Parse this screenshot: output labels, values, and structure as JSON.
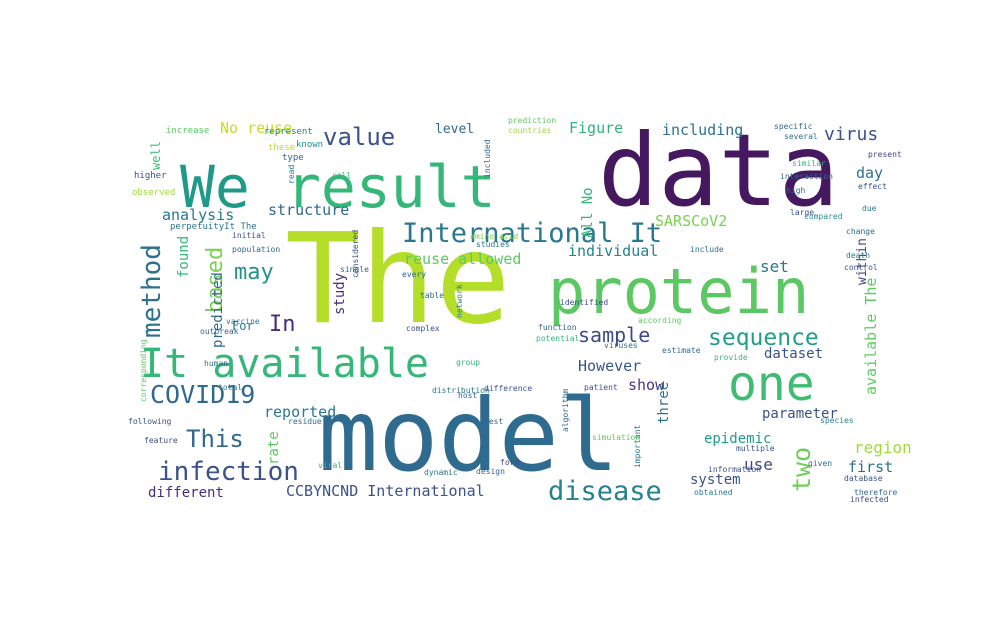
{
  "words": [
    {
      "text": "The",
      "color": "#b5de2b"
    },
    {
      "text": "data",
      "color": "#46185f"
    },
    {
      "text": "model",
      "color": "#2f6b8e"
    },
    {
      "text": "protein",
      "color": "#5cc863"
    },
    {
      "text": "result",
      "color": "#35b779"
    },
    {
      "text": "We",
      "color": "#1f9a8a"
    },
    {
      "text": "one",
      "color": "#3fbc73"
    },
    {
      "text": "It available",
      "color": "#35b779"
    },
    {
      "text": "International It",
      "color": "#2a788e"
    },
    {
      "text": "method",
      "color": "#2c728e"
    },
    {
      "text": "disease",
      "color": "#26828e"
    },
    {
      "text": "infection",
      "color": "#3b528b"
    },
    {
      "text": "COVID19",
      "color": "#31688e"
    },
    {
      "text": "sequence",
      "color": "#1f9e89"
    },
    {
      "text": "value",
      "color": "#3b528b"
    },
    {
      "text": "This",
      "color": "#31688e"
    },
    {
      "text": "sample",
      "color": "#3e4989"
    },
    {
      "text": "based",
      "color": "#7ad151"
    },
    {
      "text": "may",
      "color": "#21918c"
    },
    {
      "text": "two",
      "color": "#6ece58"
    },
    {
      "text": "In",
      "color": "#472d7b"
    },
    {
      "text": "analysis",
      "color": "#2a788e"
    },
    {
      "text": "structure",
      "color": "#31688e"
    },
    {
      "text": "reuse allowed",
      "color": "#5ec962"
    },
    {
      "text": "individual",
      "color": "#26828e"
    },
    {
      "text": "All No",
      "color": "#35b779"
    },
    {
      "text": "Figure",
      "color": "#2fb47c"
    },
    {
      "text": "including",
      "color": "#2c728e"
    },
    {
      "text": "virus",
      "color": "#3b528b"
    },
    {
      "text": "No reuse",
      "color": "#c2df23"
    },
    {
      "text": "level",
      "color": "#31688e"
    },
    {
      "text": "SARSCoV2",
      "color": "#7ad151"
    },
    {
      "text": "day",
      "color": "#2c728e"
    },
    {
      "text": "set",
      "color": "#2a788e"
    },
    {
      "text": "within",
      "color": "#3e4989"
    },
    {
      "text": "available The",
      "color": "#5ec962"
    },
    {
      "text": "However",
      "color": "#39568c"
    },
    {
      "text": "show",
      "color": "#443983"
    },
    {
      "text": "three",
      "color": "#2c728e"
    },
    {
      "text": "dataset",
      "color": "#3b528b"
    },
    {
      "text": "parameter",
      "color": "#3b528b"
    },
    {
      "text": "epidemic",
      "color": "#1f9e89"
    },
    {
      "text": "region",
      "color": "#a0da39"
    },
    {
      "text": "use",
      "color": "#3e4989"
    },
    {
      "text": "first",
      "color": "#2c728e"
    },
    {
      "text": "system",
      "color": "#3b528b"
    },
    {
      "text": "different",
      "color": "#472d7b"
    },
    {
      "text": "CCBYNCND International",
      "color": "#3b528b"
    },
    {
      "text": "reported",
      "color": "#2a788e"
    },
    {
      "text": "rate",
      "color": "#5ec962"
    },
    {
      "text": "found",
      "color": "#35b779"
    },
    {
      "text": "study",
      "color": "#46337e"
    },
    {
      "text": "predicted",
      "color": "#31688e"
    },
    {
      "text": "For",
      "color": "#2a788e"
    },
    {
      "text": "well",
      "color": "#3fbc73"
    },
    {
      "text": "increase",
      "color": "#5ec962"
    },
    {
      "text": "these",
      "color": "#b5de2b"
    },
    {
      "text": "higher",
      "color": "#3b528b"
    },
    {
      "text": "observed",
      "color": "#a0da39"
    },
    {
      "text": "represent",
      "color": "#26828e"
    },
    {
      "text": "known",
      "color": "#21918c"
    },
    {
      "text": "type",
      "color": "#31688e"
    },
    {
      "text": "perpetuityIt The",
      "color": "#2a788e"
    },
    {
      "text": "initial",
      "color": "#3b528b"
    },
    {
      "text": "population",
      "color": "#31688e"
    },
    {
      "text": "vaccine",
      "color": "#2a788e"
    },
    {
      "text": "outbreak",
      "color": "#31688e"
    },
    {
      "text": "human",
      "color": "#2c728e"
    },
    {
      "text": "corresponding",
      "color": "#5ec962"
    },
    {
      "text": "following",
      "color": "#3b528b"
    },
    {
      "text": "feature",
      "color": "#3e4989"
    },
    {
      "text": "total",
      "color": "#2a788e"
    },
    {
      "text": "viral",
      "color": "#35b779"
    },
    {
      "text": "residue",
      "color": "#31688e"
    },
    {
      "text": "cell",
      "color": "#35b779"
    },
    {
      "text": "read",
      "color": "#2a788e"
    },
    {
      "text": "single",
      "color": "#31688e"
    },
    {
      "text": "complex",
      "color": "#3b528b"
    },
    {
      "text": "table",
      "color": "#31688e"
    },
    {
      "text": "network",
      "color": "#26828e"
    },
    {
      "text": "considered",
      "color": "#3e4989"
    },
    {
      "text": "identified",
      "color": "#3b528b"
    },
    {
      "text": "according",
      "color": "#5ec962"
    },
    {
      "text": "function",
      "color": "#31688e"
    },
    {
      "text": "potential",
      "color": "#35b779"
    },
    {
      "text": "distribution",
      "color": "#2a788e"
    },
    {
      "text": "host",
      "color": "#31688e"
    },
    {
      "text": "difference",
      "color": "#3b528b"
    },
    {
      "text": "patient",
      "color": "#3e4989"
    },
    {
      "text": "algorithm",
      "color": "#31688e"
    },
    {
      "text": "important",
      "color": "#2a788e"
    },
    {
      "text": "viruses",
      "color": "#2c728e"
    },
    {
      "text": "estimate",
      "color": "#31688e"
    },
    {
      "text": "provide",
      "color": "#35b779"
    },
    {
      "text": "simulation",
      "color": "#5ec962"
    },
    {
      "text": "information",
      "color": "#3b528b"
    },
    {
      "text": "obtained",
      "color": "#2a788e"
    },
    {
      "text": "design",
      "color": "#31688e"
    },
    {
      "text": "dynamic",
      "color": "#2a788e"
    },
    {
      "text": "multiple",
      "color": "#3b528b"
    },
    {
      "text": "species",
      "color": "#26828e"
    },
    {
      "text": "database",
      "color": "#3b528b"
    },
    {
      "text": "given",
      "color": "#2c728e"
    },
    {
      "text": "therefore",
      "color": "#31688e"
    },
    {
      "text": "infected",
      "color": "#3e4989"
    },
    {
      "text": "death",
      "color": "#2a788e"
    },
    {
      "text": "control",
      "color": "#3b528b"
    },
    {
      "text": "change",
      "color": "#31688e"
    },
    {
      "text": "compared",
      "color": "#21918c"
    },
    {
      "text": "due",
      "color": "#2a788e"
    },
    {
      "text": "effect",
      "color": "#3b528b"
    },
    {
      "text": "high",
      "color": "#31688e"
    },
    {
      "text": "similar",
      "color": "#35b779"
    },
    {
      "text": "present",
      "color": "#3e4989"
    },
    {
      "text": "several",
      "color": "#2c728e"
    },
    {
      "text": "specific",
      "color": "#31688e"
    },
    {
      "text": "prediction",
      "color": "#5ec962"
    },
    {
      "text": "countries",
      "color": "#a0da39"
    },
    {
      "text": "interaction",
      "color": "#31688e"
    },
    {
      "text": "studies",
      "color": "#2a788e"
    },
    {
      "text": "amino acid",
      "color": "#7ad151"
    },
    {
      "text": "included",
      "color": "#31688e"
    },
    {
      "text": "large",
      "color": "#3b528b"
    },
    {
      "text": "include",
      "color": "#2c728e"
    },
    {
      "text": "test",
      "color": "#31688e"
    },
    {
      "text": "form",
      "color": "#3e4989"
    },
    {
      "text": "group",
      "color": "#35b779"
    },
    {
      "text": "every",
      "color": "#31688e"
    }
  ]
}
